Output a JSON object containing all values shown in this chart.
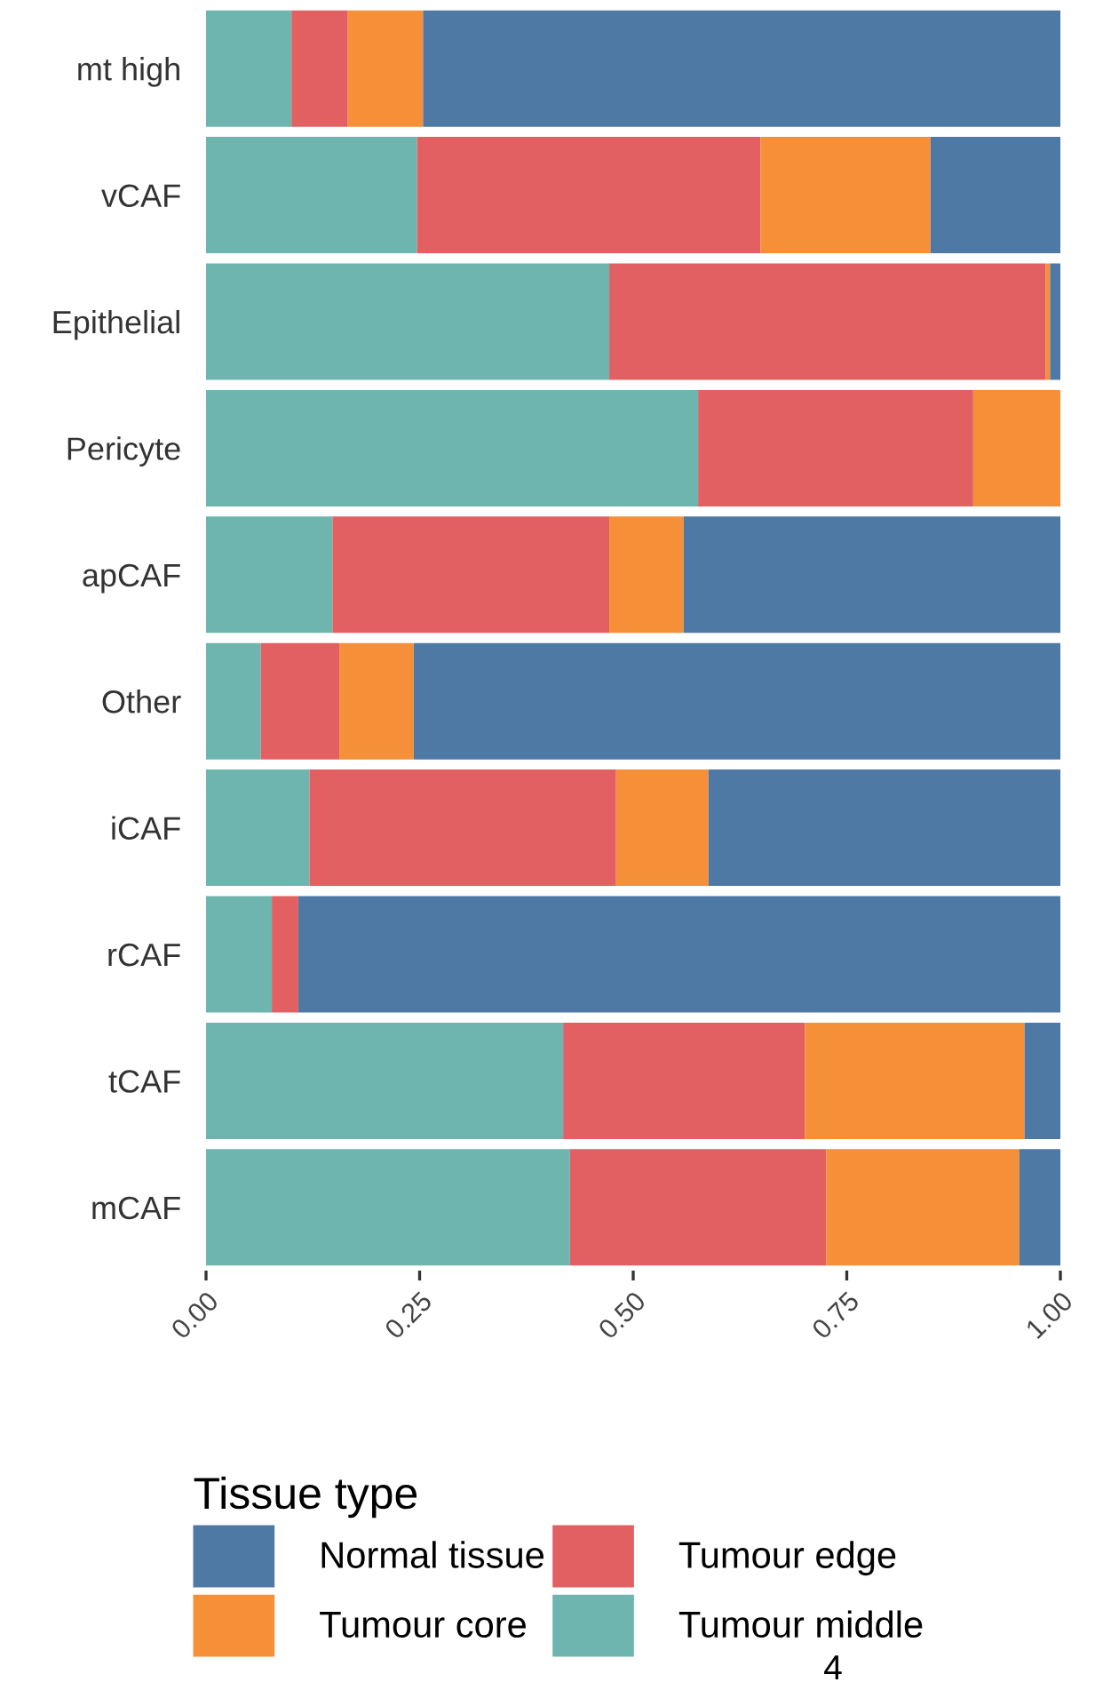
{
  "chart_data": {
    "type": "bar",
    "orientation": "horizontal",
    "stacked": true,
    "categories": [
      "mt high",
      "vCAF",
      "Epithelial",
      "Pericyte",
      "apCAF",
      "Other",
      "iCAF",
      "rCAF",
      "tCAF",
      "mCAF"
    ],
    "series": [
      {
        "name": "Tumour middle",
        "color": "#6db5ae",
        "values": [
          0.1,
          0.247,
          0.472,
          0.576,
          0.148,
          0.064,
          0.121,
          0.077,
          0.418,
          0.426
        ]
      },
      {
        "name": "Tumour edge",
        "color": "#e36062",
        "values": [
          0.066,
          0.402,
          0.511,
          0.322,
          0.324,
          0.092,
          0.359,
          0.031,
          0.283,
          0.3
        ]
      },
      {
        "name": "Tumour core",
        "color": "#f59038",
        "values": [
          0.088,
          0.199,
          0.005,
          0.102,
          0.087,
          0.087,
          0.108,
          0.0,
          0.257,
          0.226
        ]
      },
      {
        "name": "Normal tissue",
        "color": "#4e79a5",
        "values": [
          0.746,
          0.152,
          0.012,
          0.0,
          0.441,
          0.757,
          0.412,
          0.892,
          0.042,
          0.048
        ]
      }
    ],
    "xlim": [
      0,
      1
    ],
    "xticks": [
      {
        "value": 0,
        "label": "0.00"
      },
      {
        "value": 0.25,
        "label": "0.25"
      },
      {
        "value": 0.5,
        "label": "0.50"
      },
      {
        "value": 0.75,
        "label": "0.75"
      },
      {
        "value": 1,
        "label": "1.00"
      }
    ],
    "legend_title": "Tissue type",
    "legend": "bottom",
    "grid": false,
    "annotations": [
      "4"
    ]
  }
}
